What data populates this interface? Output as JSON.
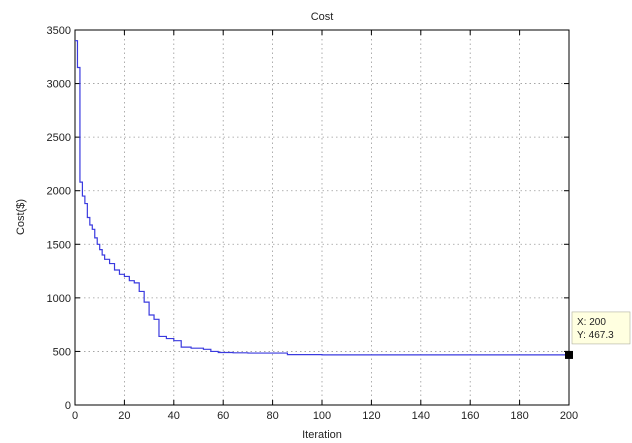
{
  "chart_data": {
    "type": "line",
    "title": "Cost",
    "xlabel": "Iteration",
    "ylabel": "Cost($)",
    "xlim": [
      0,
      200
    ],
    "ylim": [
      0,
      3500
    ],
    "grid": true,
    "x_ticks": [
      0,
      20,
      40,
      60,
      80,
      100,
      120,
      140,
      160,
      180,
      200
    ],
    "y_ticks": [
      0,
      500,
      1000,
      1500,
      2000,
      2500,
      3000,
      3500
    ],
    "series": [
      {
        "color": "#3a3adf",
        "step": true,
        "points": [
          [
            0,
            3400
          ],
          [
            1,
            3150
          ],
          [
            2,
            2080
          ],
          [
            3,
            1950
          ],
          [
            4,
            1880
          ],
          [
            5,
            1750
          ],
          [
            6,
            1680
          ],
          [
            7,
            1640
          ],
          [
            8,
            1560
          ],
          [
            9,
            1500
          ],
          [
            10,
            1450
          ],
          [
            11,
            1400
          ],
          [
            12,
            1360
          ],
          [
            14,
            1320
          ],
          [
            16,
            1260
          ],
          [
            18,
            1220
          ],
          [
            20,
            1200
          ],
          [
            22,
            1160
          ],
          [
            24,
            1140
          ],
          [
            26,
            1060
          ],
          [
            28,
            960
          ],
          [
            30,
            840
          ],
          [
            32,
            800
          ],
          [
            34,
            640
          ],
          [
            37,
            620
          ],
          [
            40,
            600
          ],
          [
            43,
            540
          ],
          [
            47,
            530
          ],
          [
            52,
            520
          ],
          [
            55,
            500
          ],
          [
            58,
            490
          ],
          [
            64,
            487
          ],
          [
            70,
            485
          ],
          [
            86,
            470
          ],
          [
            100,
            468
          ],
          [
            140,
            467.5
          ],
          [
            200,
            467.3
          ]
        ]
      }
    ],
    "datatip": {
      "x": 200,
      "y": 467.3,
      "x_text": "X: 200",
      "y_text": "Y: 467.3"
    }
  }
}
